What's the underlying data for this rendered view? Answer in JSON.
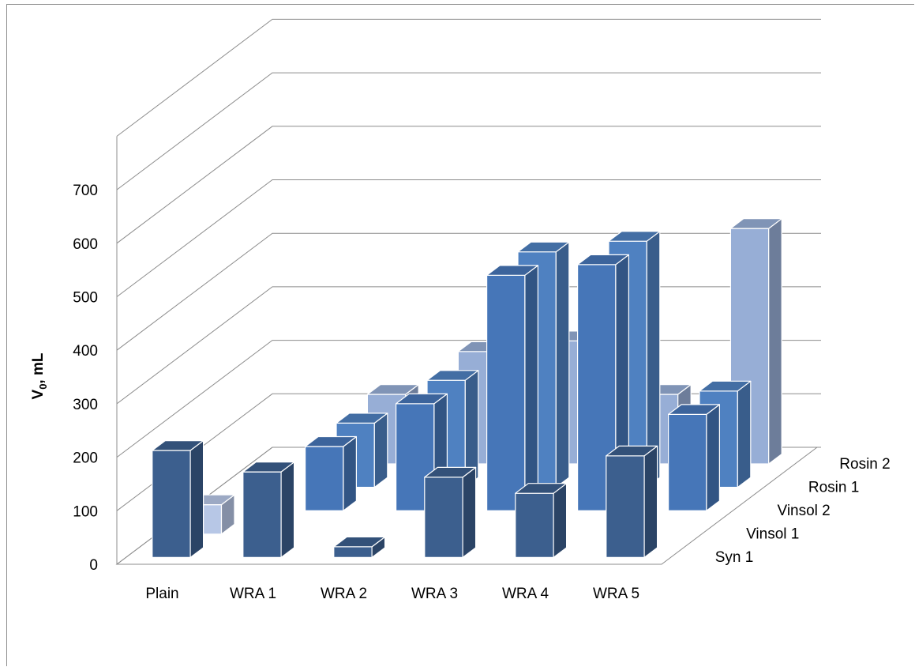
{
  "chart_data": {
    "type": "bar",
    "subtype": "3d-column",
    "categories": [
      "Plain",
      "WRA 1",
      "WRA 2",
      "WRA 3",
      "WRA 4",
      "WRA 5"
    ],
    "series": [
      {
        "name": "Syn 1",
        "color": "#3c5f8e",
        "values": [
          200,
          160,
          20,
          150,
          120,
          190
        ]
      },
      {
        "name": "Vinsol 1",
        "color": "#b7c7e6",
        "values": [
          55,
          null,
          null,
          null,
          null,
          null
        ]
      },
      {
        "name": "Vinsol 2",
        "color": "#4676b8",
        "values": [
          null,
          120,
          200,
          440,
          460,
          180
        ]
      },
      {
        "name": "Rosin 1",
        "color": "#4f81c1",
        "values": [
          null,
          120,
          200,
          440,
          460,
          180
        ]
      },
      {
        "name": "Rosin 2",
        "color": "#97aed6",
        "values": [
          null,
          130,
          210,
          230,
          130,
          440
        ]
      }
    ],
    "ylabel_main": "V",
    "ylabel_sub": "0",
    "ylabel_rest": ", mL",
    "yticks": [
      "0",
      "100",
      "200",
      "300",
      "400",
      "500",
      "600",
      "700"
    ],
    "ylim": [
      0,
      700
    ],
    "gridlines": true,
    "legend": "depth-axis"
  }
}
